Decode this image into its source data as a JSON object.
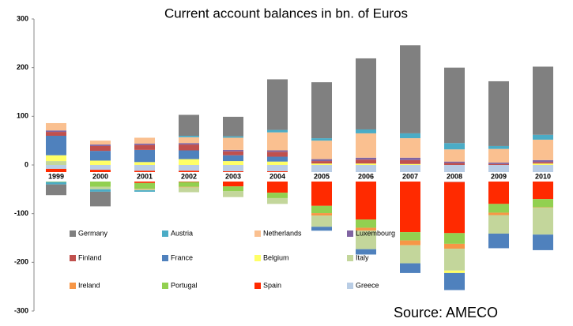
{
  "chart_data": {
    "type": "bar",
    "stacked": true,
    "title": "Current account balances in bn. of Euros",
    "annotation": "Source: AMECO",
    "categories": [
      "1999",
      "2000",
      "2001",
      "2002",
      "2003",
      "2004",
      "2005",
      "2006",
      "2007",
      "2008",
      "2009",
      "2010"
    ],
    "series": [
      {
        "name": "Germany",
        "color": "#808080",
        "values": [
          -22,
          -30,
          0,
          43,
          40,
          104,
          115,
          146,
          181,
          155,
          133,
          140
        ]
      },
      {
        "name": "Austria",
        "color": "#4bacc6",
        "values": [
          -5,
          -5,
          -3,
          3,
          3,
          5,
          5,
          8,
          10,
          13,
          6,
          10
        ]
      },
      {
        "name": "Netherlands",
        "color": "#fac090",
        "values": [
          15,
          8,
          12,
          12,
          25,
          37,
          38,
          50,
          40,
          25,
          28,
          42
        ]
      },
      {
        "name": "Luxembourg",
        "color": "#8064a2",
        "values": [
          3,
          3,
          3,
          3,
          3,
          3,
          4,
          4,
          5,
          3,
          3,
          4
        ]
      },
      {
        "name": "Finland",
        "color": "#c0504d",
        "values": [
          8,
          10,
          10,
          12,
          8,
          10,
          5,
          8,
          8,
          4,
          2,
          3
        ]
      },
      {
        "name": "France",
        "color": "#4f81bd",
        "values": [
          40,
          20,
          25,
          18,
          12,
          10,
          -8,
          -11,
          -20,
          -35,
          -30,
          -32
        ]
      },
      {
        "name": "Belgium",
        "color": "#ffff66",
        "values": [
          12,
          9,
          6,
          12,
          8,
          7,
          3,
          3,
          2,
          -5,
          0,
          3
        ]
      },
      {
        "name": "Italy",
        "color": "#c3d69b",
        "values": [
          8,
          -5,
          -2,
          -10,
          -12,
          -12,
          -23,
          -38,
          -37,
          -45,
          -38,
          -55
        ]
      },
      {
        "name": "Ireland",
        "color": "#f79646",
        "values": [
          0,
          0,
          -1,
          -1,
          0,
          0,
          -5,
          -6,
          -10,
          -10,
          -5,
          -1
        ]
      },
      {
        "name": "Portugal",
        "color": "#92d050",
        "values": [
          -9,
          -12,
          -12,
          -10,
          -10,
          -11,
          -15,
          -17,
          -17,
          -22,
          -18,
          -17
        ]
      },
      {
        "name": "Spain",
        "color": "#ff2a00",
        "values": [
          -18,
          -23,
          -25,
          -23,
          -31,
          -44,
          -66,
          -88,
          -105,
          -105,
          -55,
          -48
        ]
      },
      {
        "name": "Greece",
        "color": "#b9cde5",
        "values": [
          -8,
          -10,
          -12,
          -12,
          -13,
          -13,
          -18,
          -24,
          -33,
          -35,
          -25,
          -22
        ]
      }
    ],
    "ylim": [
      -300,
      300
    ],
    "yticks": [
      -300,
      -200,
      -100,
      0,
      100,
      200,
      300
    ],
    "grid": false
  }
}
